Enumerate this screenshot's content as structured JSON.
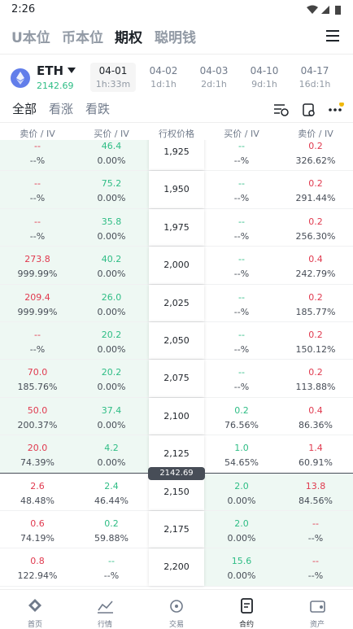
{
  "status_bar": {
    "time": "2:26"
  },
  "tabs": [
    "U本位",
    "币本位",
    "期权",
    "聪明钱"
  ],
  "asset": {
    "symbol": "ETH",
    "price": "2142.69"
  },
  "expiries": [
    {
      "date": "04-01",
      "remaining": "1h:33m"
    },
    {
      "date": "04-02",
      "remaining": "1d:1h"
    },
    {
      "date": "04-03",
      "remaining": "2d:1h"
    },
    {
      "date": "04-10",
      "remaining": "9d:1h"
    },
    {
      "date": "04-17",
      "remaining": "16d:1h"
    }
  ],
  "filters": [
    "全部",
    "看涨",
    "看跌"
  ],
  "table": {
    "headers": [
      "卖价 / IV",
      "买价 / IV",
      "行权价格",
      "买价 / IV",
      "卖价 / IV"
    ],
    "rows": [
      {
        "call_ask": "--",
        "call_ask_iv": "--%",
        "call_bid": "46.4",
        "call_bid_iv": "0.00%",
        "strike": "1,925",
        "put_bid": "--",
        "put_bid_iv": "--%",
        "put_ask": "0.2",
        "put_ask_iv": "326.62%"
      },
      {
        "call_ask": "--",
        "call_ask_iv": "--%",
        "call_bid": "75.2",
        "call_bid_iv": "0.00%",
        "strike": "1,950",
        "put_bid": "--",
        "put_bid_iv": "--%",
        "put_ask": "0.2",
        "put_ask_iv": "291.44%"
      },
      {
        "call_ask": "--",
        "call_ask_iv": "--%",
        "call_bid": "35.8",
        "call_bid_iv": "0.00%",
        "strike": "1,975",
        "put_bid": "--",
        "put_bid_iv": "--%",
        "put_ask": "0.2",
        "put_ask_iv": "256.30%"
      },
      {
        "call_ask": "273.8",
        "call_ask_iv": "999.99%",
        "call_bid": "40.2",
        "call_bid_iv": "0.00%",
        "strike": "2,000",
        "put_bid": "--",
        "put_bid_iv": "--%",
        "put_ask": "0.4",
        "put_ask_iv": "242.79%"
      },
      {
        "call_ask": "209.4",
        "call_ask_iv": "999.99%",
        "call_bid": "26.0",
        "call_bid_iv": "0.00%",
        "strike": "2,025",
        "put_bid": "--",
        "put_bid_iv": "--%",
        "put_ask": "0.2",
        "put_ask_iv": "185.77%"
      },
      {
        "call_ask": "--",
        "call_ask_iv": "--%",
        "call_bid": "20.2",
        "call_bid_iv": "0.00%",
        "strike": "2,050",
        "put_bid": "--",
        "put_bid_iv": "--%",
        "put_ask": "0.2",
        "put_ask_iv": "150.12%"
      },
      {
        "call_ask": "70.0",
        "call_ask_iv": "185.76%",
        "call_bid": "20.2",
        "call_bid_iv": "0.00%",
        "strike": "2,075",
        "put_bid": "--",
        "put_bid_iv": "--%",
        "put_ask": "0.2",
        "put_ask_iv": "113.88%"
      },
      {
        "call_ask": "50.0",
        "call_ask_iv": "200.37%",
        "call_bid": "37.4",
        "call_bid_iv": "0.00%",
        "strike": "2,100",
        "put_bid": "0.2",
        "put_bid_iv": "76.56%",
        "put_ask": "0.4",
        "put_ask_iv": "86.36%"
      },
      {
        "call_ask": "20.0",
        "call_ask_iv": "74.39%",
        "call_bid": "4.2",
        "call_bid_iv": "0.00%",
        "strike": "2,125",
        "put_bid": "1.0",
        "put_bid_iv": "54.65%",
        "put_ask": "1.4",
        "put_ask_iv": "60.91%"
      },
      {
        "call_ask": "2.6",
        "call_ask_iv": "48.48%",
        "call_bid": "2.4",
        "call_bid_iv": "46.44%",
        "strike": "2,150",
        "put_bid": "2.0",
        "put_bid_iv": "0.00%",
        "put_ask": "13.8",
        "put_ask_iv": "84.56%"
      },
      {
        "call_ask": "0.6",
        "call_ask_iv": "74.19%",
        "call_bid": "0.2",
        "call_bid_iv": "59.88%",
        "strike": "2,175",
        "put_bid": "2.0",
        "put_bid_iv": "0.00%",
        "put_ask": "--",
        "put_ask_iv": "--%"
      },
      {
        "call_ask": "0.8",
        "call_ask_iv": "122.94%",
        "call_bid": "--",
        "call_bid_iv": "--%",
        "strike": "2,200",
        "put_bid": "15.6",
        "put_bid_iv": "0.00%",
        "put_ask": "--",
        "put_ask_iv": "--%"
      }
    ],
    "price_marker": "2142.69"
  },
  "bottom_nav": [
    "首页",
    "行情",
    "交易",
    "合约",
    "资产"
  ]
}
